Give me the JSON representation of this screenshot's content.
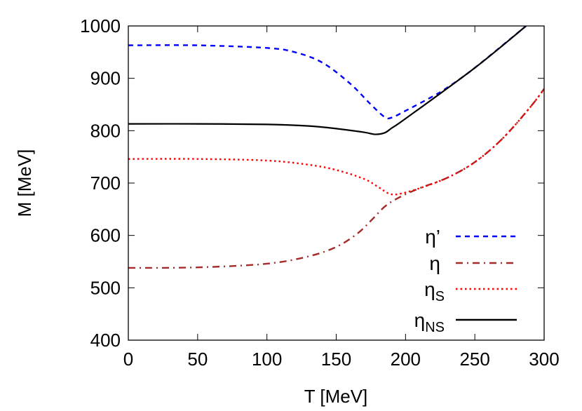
{
  "chart_data": {
    "type": "line",
    "title": "",
    "xlabel": "T [MeV]",
    "ylabel": "M [MeV]",
    "xlim": [
      0,
      300
    ],
    "ylim": [
      400,
      1000
    ],
    "xticks": [
      0,
      50,
      100,
      150,
      200,
      250,
      300
    ],
    "yticks": [
      400,
      500,
      600,
      700,
      800,
      900,
      1000
    ],
    "grid": false,
    "legend_position": "bottom-right",
    "series": [
      {
        "name": "η’",
        "sub": "",
        "color": "#0000ff",
        "dash": "dashed",
        "x": [
          0,
          50,
          100,
          120,
          140,
          160,
          175,
          185,
          190,
          200,
          220,
          230,
          250,
          287
        ],
        "y": [
          963,
          963,
          958,
          950,
          930,
          890,
          850,
          826,
          825,
          838,
          866,
          882,
          920,
          1000
        ]
      },
      {
        "name": "η",
        "sub": "",
        "color": "#a52a2a",
        "dash": "dashdot",
        "x": [
          0,
          50,
          100,
          130,
          150,
          165,
          175,
          185,
          195,
          210,
          230,
          250,
          270,
          290,
          300
        ],
        "y": [
          538,
          539,
          546,
          560,
          578,
          603,
          628,
          655,
          672,
          690,
          710,
          740,
          785,
          845,
          880
        ]
      },
      {
        "name": "η",
        "sub": "S",
        "color": "#ff0000",
        "dash": "dotted",
        "x": [
          0,
          50,
          100,
          130,
          150,
          170,
          180,
          188,
          195,
          210,
          230,
          250,
          270,
          290,
          300
        ],
        "y": [
          746,
          746,
          743,
          735,
          725,
          708,
          693,
          680,
          679,
          690,
          710,
          740,
          785,
          845,
          880
        ]
      },
      {
        "name": "η",
        "sub": "NS",
        "color": "#000000",
        "dash": "solid",
        "x": [
          0,
          50,
          100,
          130,
          150,
          170,
          178,
          185,
          190,
          200,
          250,
          287
        ],
        "y": [
          813,
          813,
          812,
          809,
          804,
          797,
          793,
          796,
          805,
          823,
          920,
          1000
        ]
      }
    ]
  }
}
